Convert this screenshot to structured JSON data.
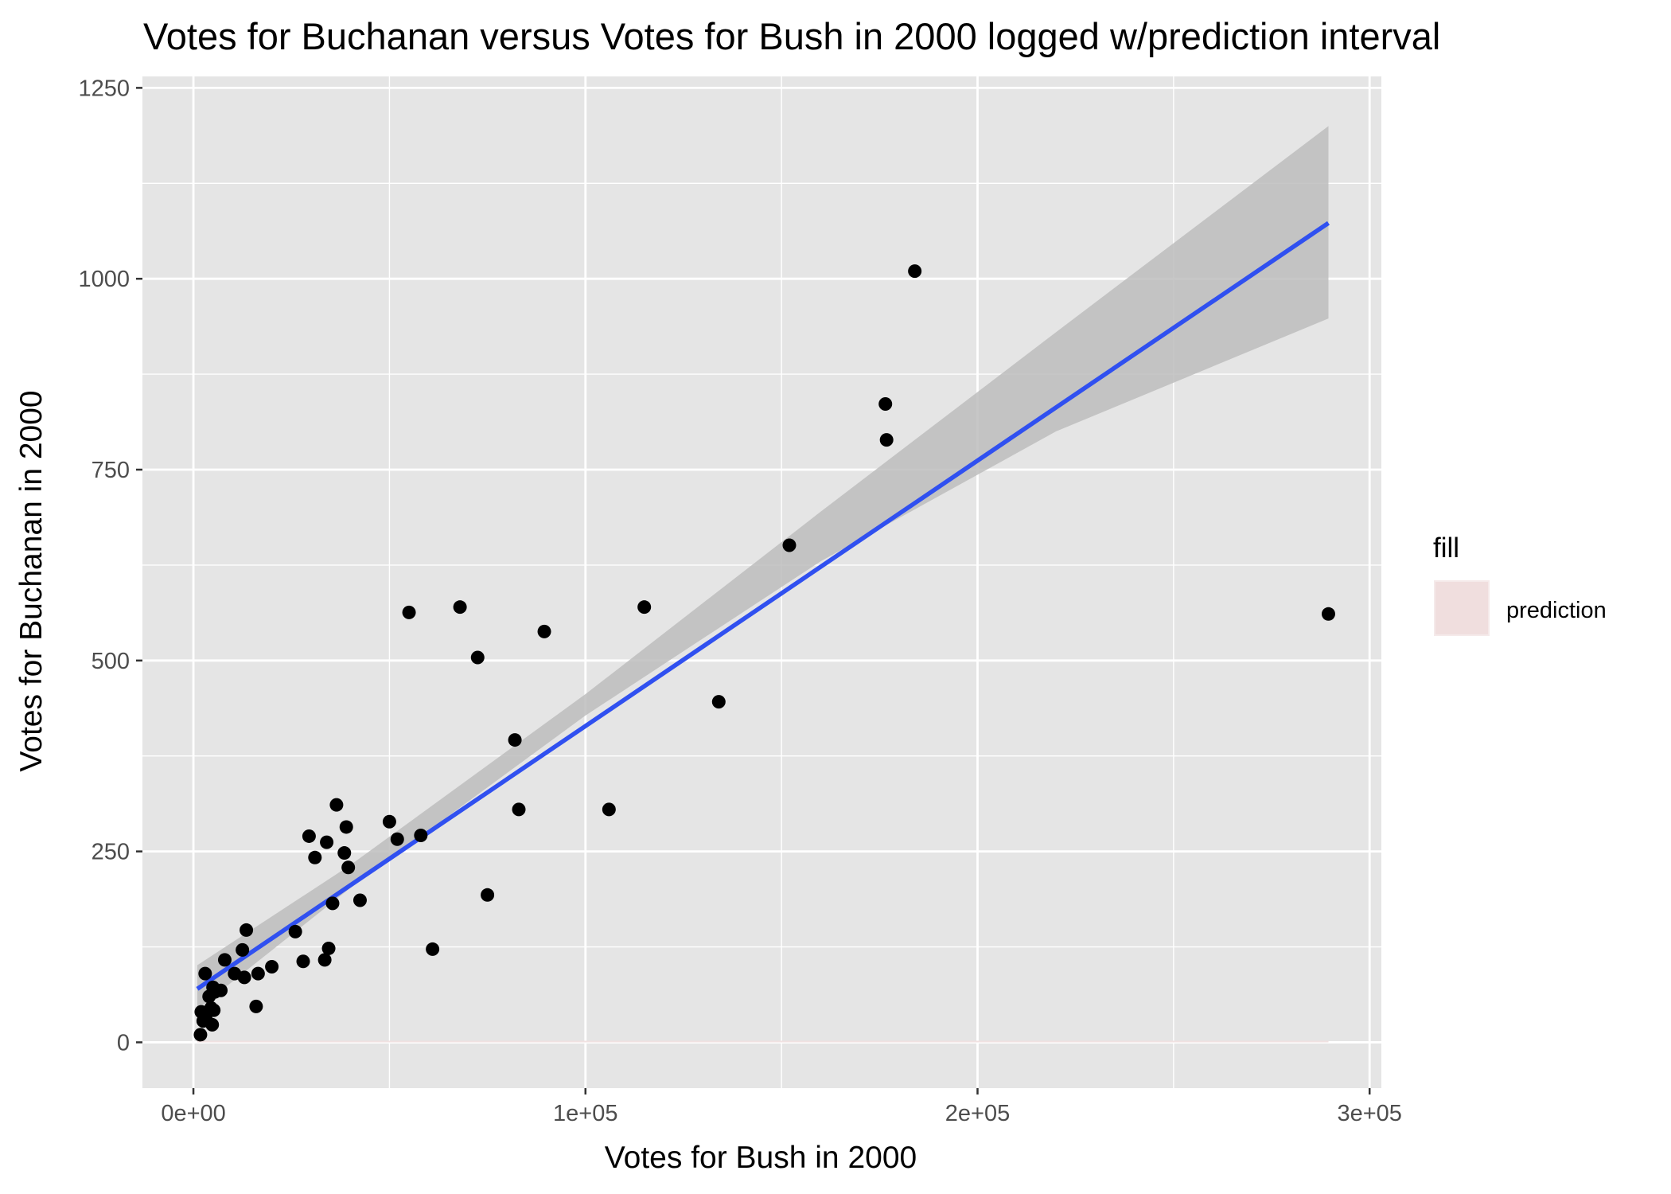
{
  "chart_data": {
    "type": "scatter",
    "title": "Votes for Buchanan versus Votes for Bush in 2000 logged w/prediction interval",
    "xlabel": "Votes for Bush in 2000",
    "ylabel": "Votes for Buchanan in 2000",
    "xlim": [
      -13000,
      303000
    ],
    "ylim": [
      -60,
      1265
    ],
    "x_ticks": [
      0,
      100000,
      200000,
      300000
    ],
    "x_tick_labels": [
      "0e+00",
      "1e+05",
      "2e+05",
      "3e+05"
    ],
    "y_ticks": [
      0,
      250,
      500,
      750,
      1000,
      1250
    ],
    "y_tick_labels": [
      "0",
      "250",
      "500",
      "750",
      "1000",
      "1250"
    ],
    "grid": true,
    "legend": {
      "title": "fill",
      "position": "right",
      "items": [
        {
          "label": "prediction",
          "color": "#f0dede"
        }
      ]
    },
    "colors": {
      "panel": "#e5e5e5",
      "grid": "#ffffff",
      "points": "#000000",
      "fit_line": "#3050f0",
      "confidence_band": "#bdbdbd",
      "prediction_fill": "#f0dede"
    },
    "points": [
      [
        184000,
        1010
      ],
      [
        176500,
        836
      ],
      [
        176800,
        789
      ],
      [
        152000,
        651
      ],
      [
        289500,
        561
      ],
      [
        115000,
        570
      ],
      [
        68000,
        570
      ],
      [
        55000,
        563
      ],
      [
        89500,
        538
      ],
      [
        72500,
        504
      ],
      [
        134000,
        446
      ],
      [
        82000,
        396
      ],
      [
        83000,
        305
      ],
      [
        106000,
        305
      ],
      [
        36500,
        311
      ],
      [
        50000,
        289
      ],
      [
        39000,
        282
      ],
      [
        29500,
        270
      ],
      [
        58000,
        271
      ],
      [
        52000,
        266
      ],
      [
        34000,
        262
      ],
      [
        31000,
        242
      ],
      [
        38500,
        248
      ],
      [
        39500,
        229
      ],
      [
        75000,
        193
      ],
      [
        42500,
        186
      ],
      [
        35500,
        182
      ],
      [
        61000,
        122
      ],
      [
        34500,
        123
      ],
      [
        26000,
        145
      ],
      [
        13500,
        147
      ],
      [
        12500,
        121
      ],
      [
        28000,
        106
      ],
      [
        33500,
        108
      ],
      [
        8000,
        108
      ],
      [
        20000,
        99
      ],
      [
        16500,
        90
      ],
      [
        10500,
        90
      ],
      [
        13000,
        85
      ],
      [
        3000,
        90
      ],
      [
        5000,
        72
      ],
      [
        7000,
        68
      ],
      [
        5500,
        66
      ],
      [
        4000,
        60
      ],
      [
        4500,
        45
      ],
      [
        5200,
        42
      ],
      [
        2000,
        40
      ],
      [
        3200,
        30
      ],
      [
        2500,
        28
      ],
      [
        4800,
        23
      ],
      [
        1800,
        10
      ],
      [
        16000,
        47
      ]
    ],
    "fit_line": {
      "x": [
        1000,
        289500
      ],
      "y": [
        70,
        1073
      ]
    },
    "confidence_band": {
      "x": [
        1000,
        40000,
        100000,
        160000,
        220000,
        289500
      ],
      "lower": [
        43,
        202,
        428,
        630,
        800,
        948
      ],
      "upper": [
        101,
        232,
        456,
        695,
        930,
        1200
      ]
    },
    "prediction_interval": {
      "x": [
        1000,
        289500
      ],
      "lower": [
        0,
        0
      ],
      "upper": [
        2,
        2
      ]
    }
  }
}
